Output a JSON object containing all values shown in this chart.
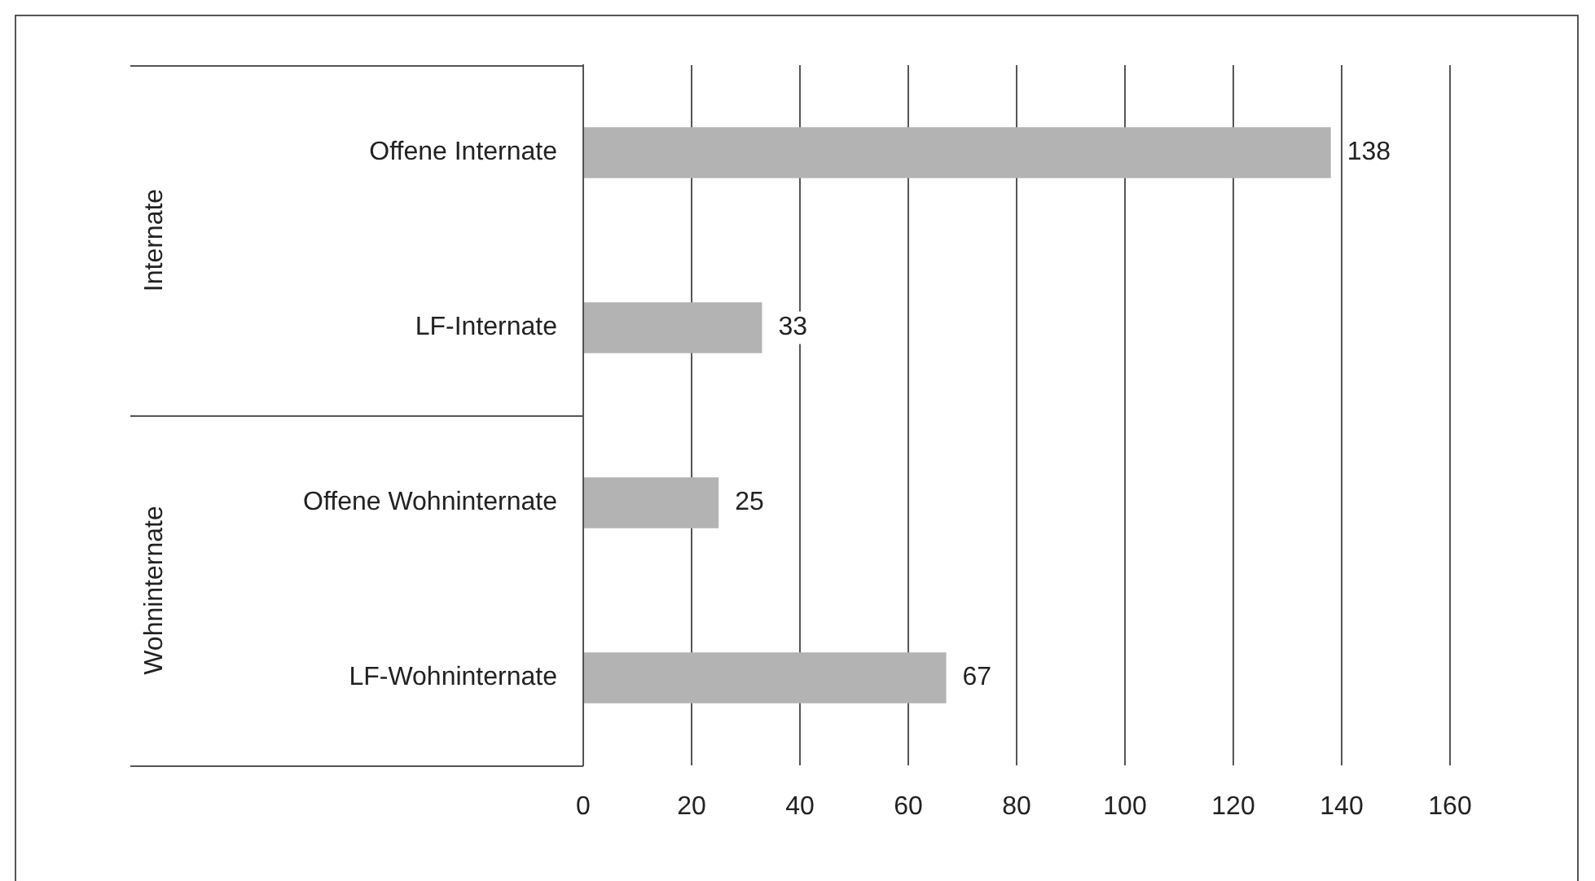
{
  "chart_data": {
    "type": "bar",
    "orientation": "horizontal",
    "categories": [
      "Offene Internate",
      "LF-Internate",
      "Offene Wohninternate",
      "LF-Wohninternate"
    ],
    "values": [
      138,
      33,
      25,
      67
    ],
    "color": "#b3b3b4",
    "xlim": [
      0,
      160
    ],
    "xticks": [
      0,
      20,
      40,
      60,
      80,
      100,
      120,
      140,
      160
    ],
    "grid": "x",
    "data_labels": true,
    "annotations": [
      "Internate",
      "Wohninternate"
    ]
  }
}
